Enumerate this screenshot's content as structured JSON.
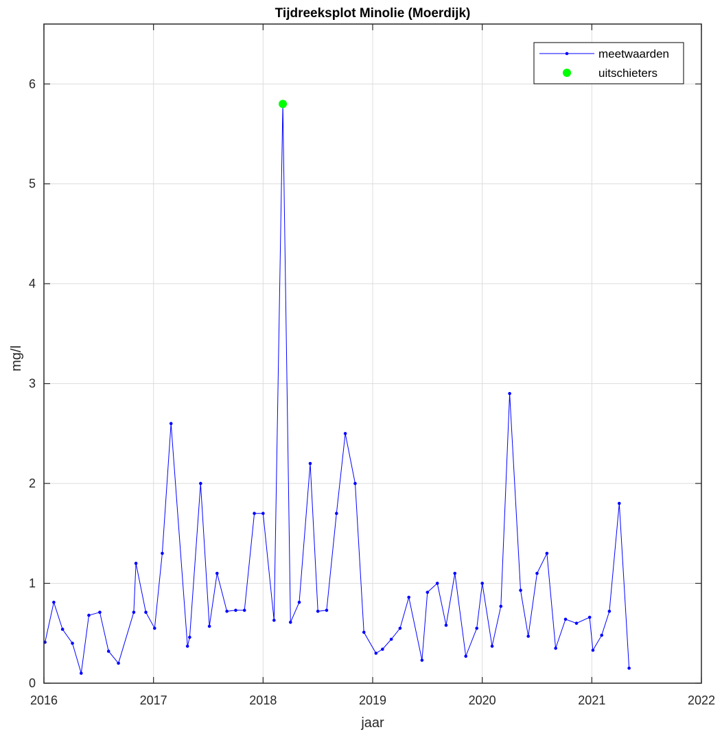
{
  "chart_data": {
    "type": "line",
    "title": "Tijdreeksplot Minolie (Moerdijk)",
    "xlabel": "jaar",
    "ylabel": "mg/l",
    "xlim": [
      2016,
      2022
    ],
    "ylim": [
      0,
      6.6
    ],
    "xticks": [
      "2016",
      "2017",
      "2018",
      "2019",
      "2020",
      "2021",
      "2022"
    ],
    "yticks": [
      "0",
      "1",
      "2",
      "3",
      "4",
      "5",
      "6"
    ],
    "grid": true,
    "legend_position": "top-right",
    "legend": [
      {
        "label": "meetwaarden",
        "marker": "line-dot",
        "color": "#0000ff"
      },
      {
        "label": "uitschieters",
        "marker": "dot",
        "color": "#00ff00"
      }
    ],
    "series": [
      {
        "name": "meetwaarden",
        "color": "#0000ff",
        "x": [
          2016.01,
          2016.09,
          2016.17,
          2016.26,
          2016.34,
          2016.41,
          2016.51,
          2016.59,
          2016.68,
          2016.82,
          2016.84,
          2016.93,
          2017.01,
          2017.08,
          2017.16,
          2017.31,
          2017.33,
          2017.43,
          2017.51,
          2017.58,
          2017.67,
          2017.75,
          2017.83,
          2017.92,
          2018.0,
          2018.1,
          2018.18,
          2018.25,
          2018.33,
          2018.43,
          2018.5,
          2018.58,
          2018.67,
          2018.75,
          2018.84,
          2018.92,
          2019.03,
          2019.09,
          2019.17,
          2019.25,
          2019.33,
          2019.45,
          2019.5,
          2019.59,
          2019.67,
          2019.75,
          2019.85,
          2019.95,
          2020.0,
          2020.09,
          2020.17,
          2020.25,
          2020.35,
          2020.42,
          2020.5,
          2020.59,
          2020.67,
          2020.76,
          2020.86,
          2020.98,
          2021.01,
          2021.09,
          2021.16,
          2021.25,
          2021.34
        ],
        "y": [
          0.41,
          0.81,
          0.54,
          0.4,
          0.1,
          0.68,
          0.71,
          0.32,
          0.2,
          0.71,
          1.2,
          0.71,
          0.55,
          1.3,
          2.6,
          0.37,
          0.46,
          2.0,
          0.57,
          1.1,
          0.72,
          0.73,
          0.73,
          1.7,
          1.7,
          0.63,
          5.8,
          0.61,
          0.81,
          2.2,
          0.72,
          0.73,
          1.7,
          2.5,
          2.0,
          0.51,
          0.3,
          0.34,
          0.44,
          0.55,
          0.86,
          0.23,
          0.91,
          1.0,
          0.58,
          1.1,
          0.27,
          0.55,
          1.0,
          0.37,
          0.77,
          2.9,
          0.93,
          0.47,
          1.1,
          1.3,
          0.35,
          0.64,
          0.6,
          0.66,
          0.33,
          0.48,
          0.72,
          1.8,
          0.15
        ]
      },
      {
        "name": "uitschieters",
        "color": "#00ff00",
        "x": [
          2018.18
        ],
        "y": [
          5.8
        ]
      }
    ]
  }
}
